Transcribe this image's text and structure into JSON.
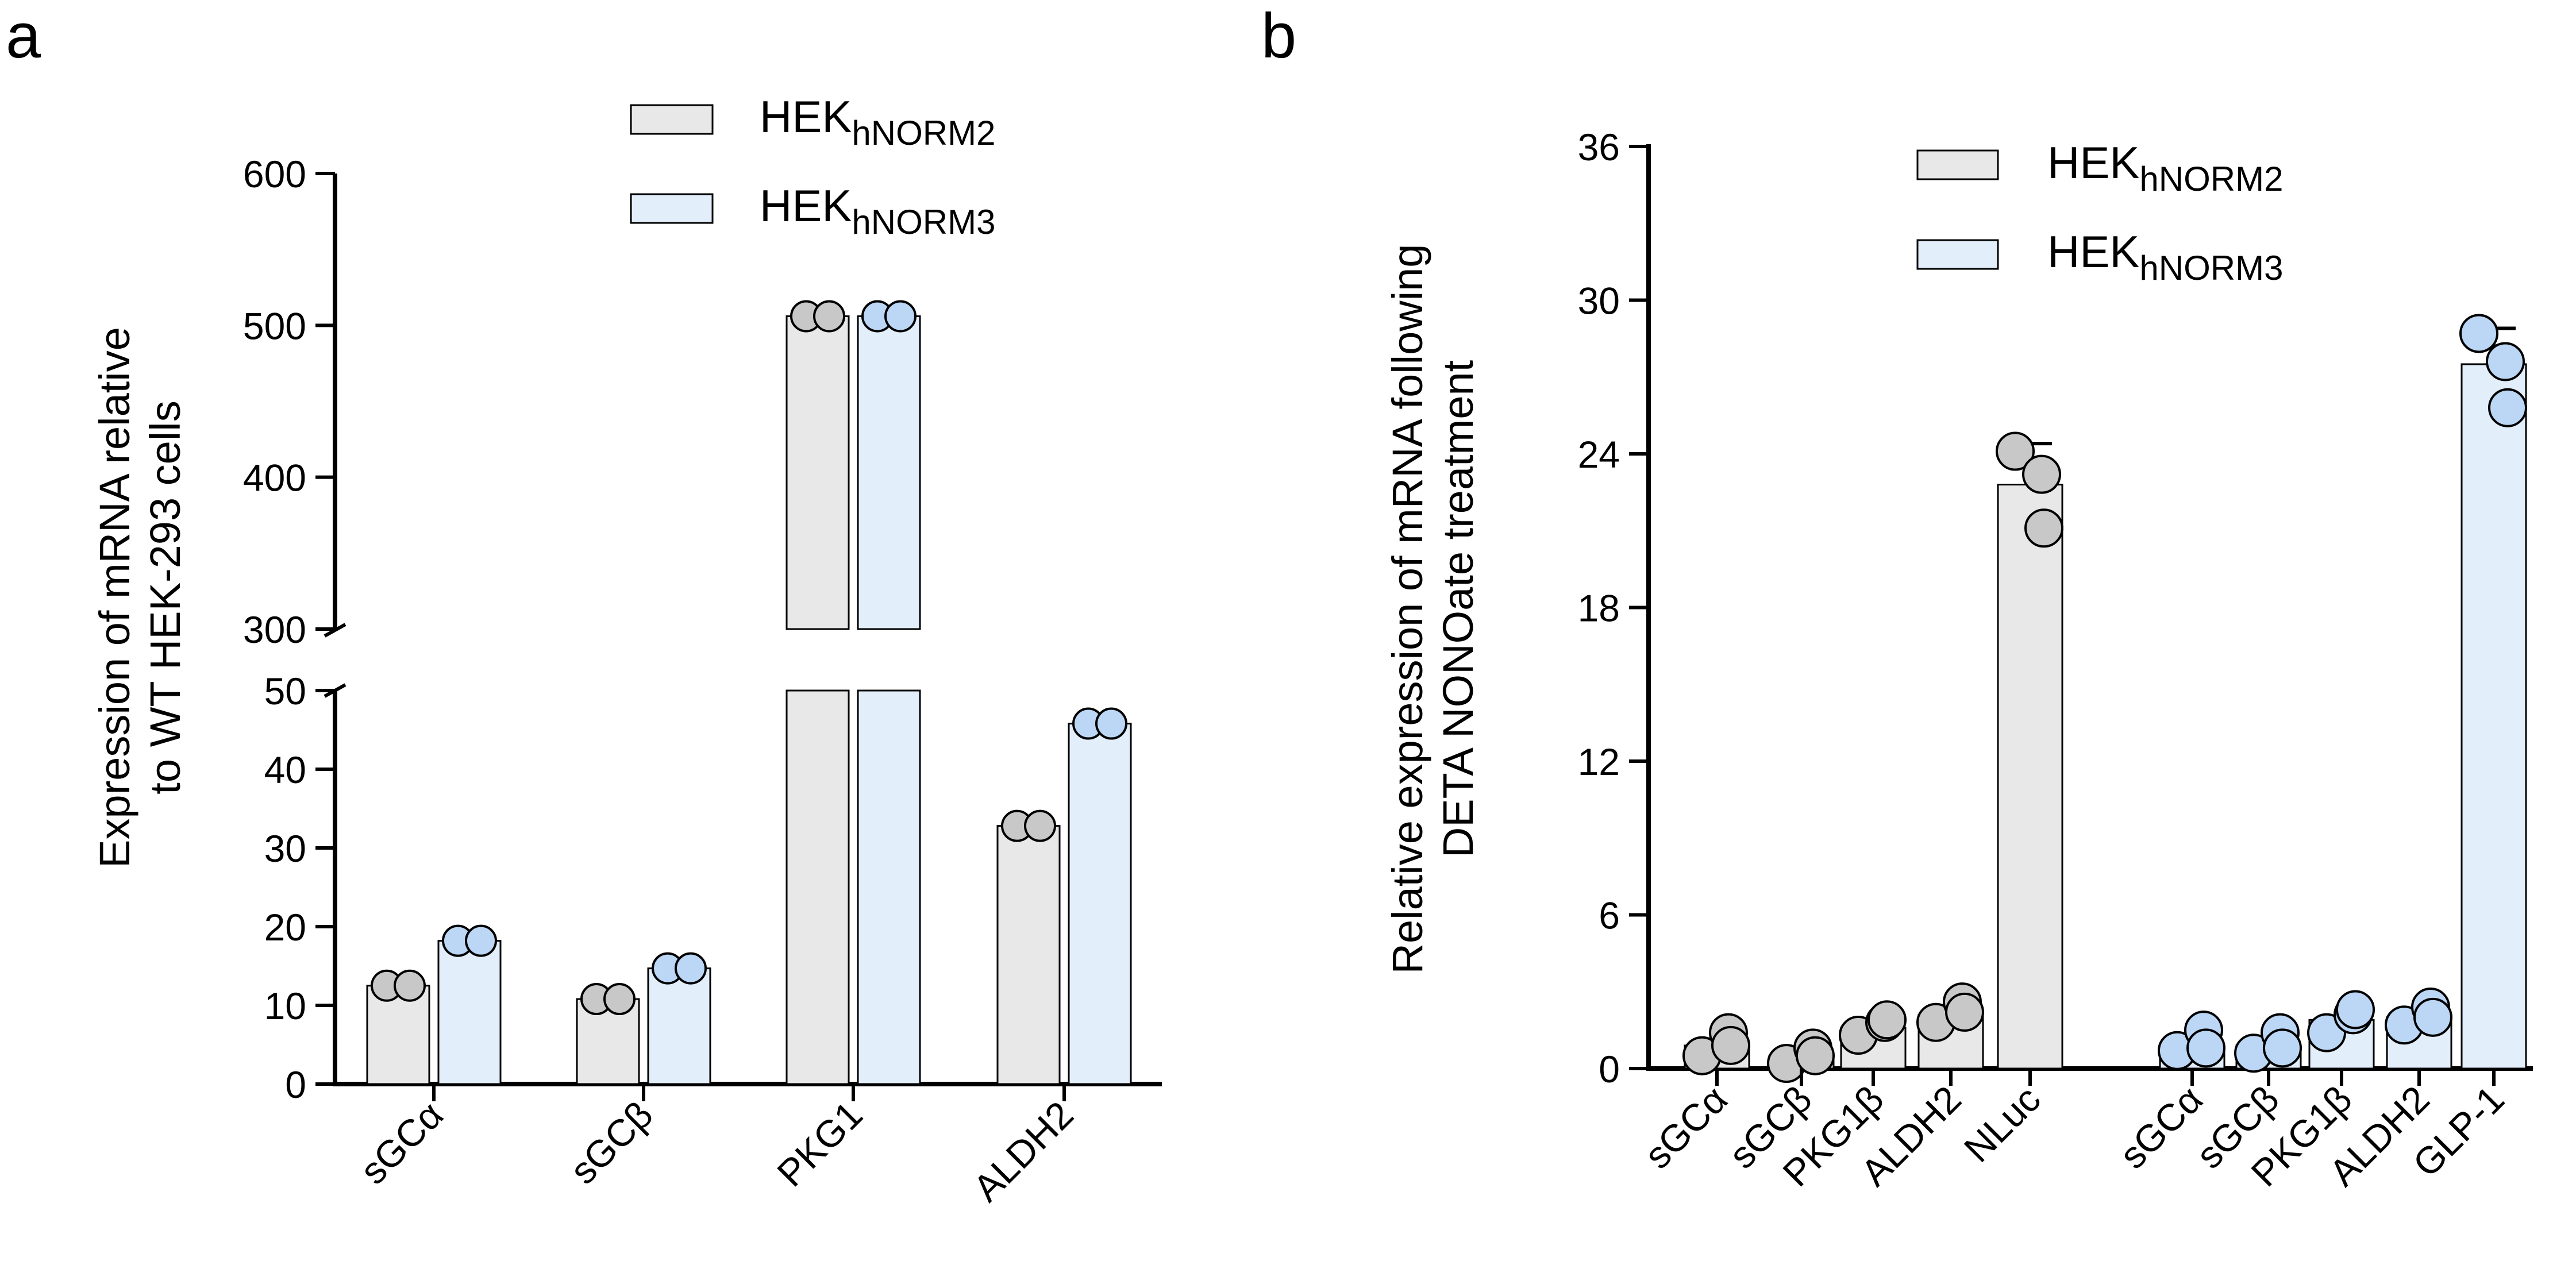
{
  "panels": [
    {
      "letter": "a"
    },
    {
      "letter": "b"
    }
  ],
  "legend": {
    "items": [
      {
        "base": "HEK",
        "sub": "hNORM2",
        "color": "#e8e8e8"
      },
      {
        "base": "HEK",
        "sub": "hNORM3",
        "color": "#e3eefb"
      }
    ]
  },
  "colors": {
    "series_hnorm2": "#e8e8e8",
    "series_hnorm3": "#e3eefb",
    "dot_hnorm2": "#c8c8c8",
    "dot_hnorm3": "#bcd7f5",
    "axis": "#000000"
  },
  "chart_data": [
    {
      "panel": "a",
      "type": "bar",
      "ylabel_lines": [
        "Expression of mRNA relative",
        "to WT HEK-293 cells"
      ],
      "categories": [
        "sGCα",
        "sGCβ",
        "PKG1",
        "ALDH2"
      ],
      "series": [
        {
          "name": "HEKhNORM2",
          "values": [
            12.5,
            10.8,
            506,
            32.8
          ],
          "points": [
            [
              12.5,
              12.5
            ],
            [
              10.8,
              10.8
            ],
            [
              506,
              506
            ],
            [
              32.8,
              32.8
            ]
          ]
        },
        {
          "name": "HEKhNORM3",
          "values": [
            18.2,
            14.7,
            506,
            45.8
          ],
          "points": [
            [
              18.2,
              18.2
            ],
            [
              14.7,
              14.7
            ],
            [
              506,
              506
            ],
            [
              45.8,
              45.8
            ]
          ]
        }
      ],
      "axis_break": {
        "lower": [
          0,
          50
        ],
        "upper": [
          300,
          600
        ]
      },
      "yticks_lower": [
        0,
        10,
        20,
        30,
        40,
        50
      ],
      "yticks_upper": [
        300,
        400,
        500,
        600
      ]
    },
    {
      "panel": "b",
      "type": "bar",
      "ylabel_lines": [
        "Relative expression of mRNA following",
        "DETA NONOate treatment"
      ],
      "ylim": [
        0,
        36
      ],
      "yticks": [
        0,
        6,
        12,
        18,
        24,
        30,
        36
      ],
      "bars": [
        {
          "label": "sGCα",
          "series": "HEKhNORM2",
          "value": 0.9,
          "error": 0,
          "points": [
            0.5,
            1.4,
            0.9
          ]
        },
        {
          "label": "sGCβ",
          "series": "HEKhNORM2",
          "value": 0.5,
          "error": 0,
          "points": [
            0.2,
            0.8,
            0.5
          ]
        },
        {
          "label": "PKG1β",
          "series": "HEKhNORM2",
          "value": 1.6,
          "error": 0,
          "points": [
            1.3,
            1.8,
            1.9
          ]
        },
        {
          "label": "ALDH2",
          "series": "HEKhNORM2",
          "value": 2.1,
          "error": 0,
          "points": [
            1.8,
            2.6,
            2.2
          ]
        },
        {
          "label": "NLuc",
          "series": "HEKhNORM2",
          "value": 22.8,
          "error": 1.6,
          "points": [
            24.1,
            23.2,
            21.1
          ]
        },
        {
          "label": "sGCα",
          "series": "HEKhNORM3",
          "value": 0.9,
          "error": 0,
          "points": [
            0.7,
            1.5,
            0.8
          ]
        },
        {
          "label": "sGCβ",
          "series": "HEKhNORM3",
          "value": 0.9,
          "error": 0,
          "points": [
            0.6,
            1.4,
            0.8
          ]
        },
        {
          "label": "PKG1β",
          "series": "HEKhNORM3",
          "value": 1.9,
          "error": 0.5,
          "points": [
            1.4,
            2.1,
            2.3
          ]
        },
        {
          "label": "ALDH2",
          "series": "HEKhNORM3",
          "value": 2.0,
          "error": 0,
          "points": [
            1.7,
            2.4,
            2.0
          ]
        },
        {
          "label": "GLP-1",
          "series": "HEKhNORM3",
          "value": 27.5,
          "error": 1.4,
          "points": [
            28.7,
            27.6,
            25.8
          ]
        }
      ]
    }
  ]
}
